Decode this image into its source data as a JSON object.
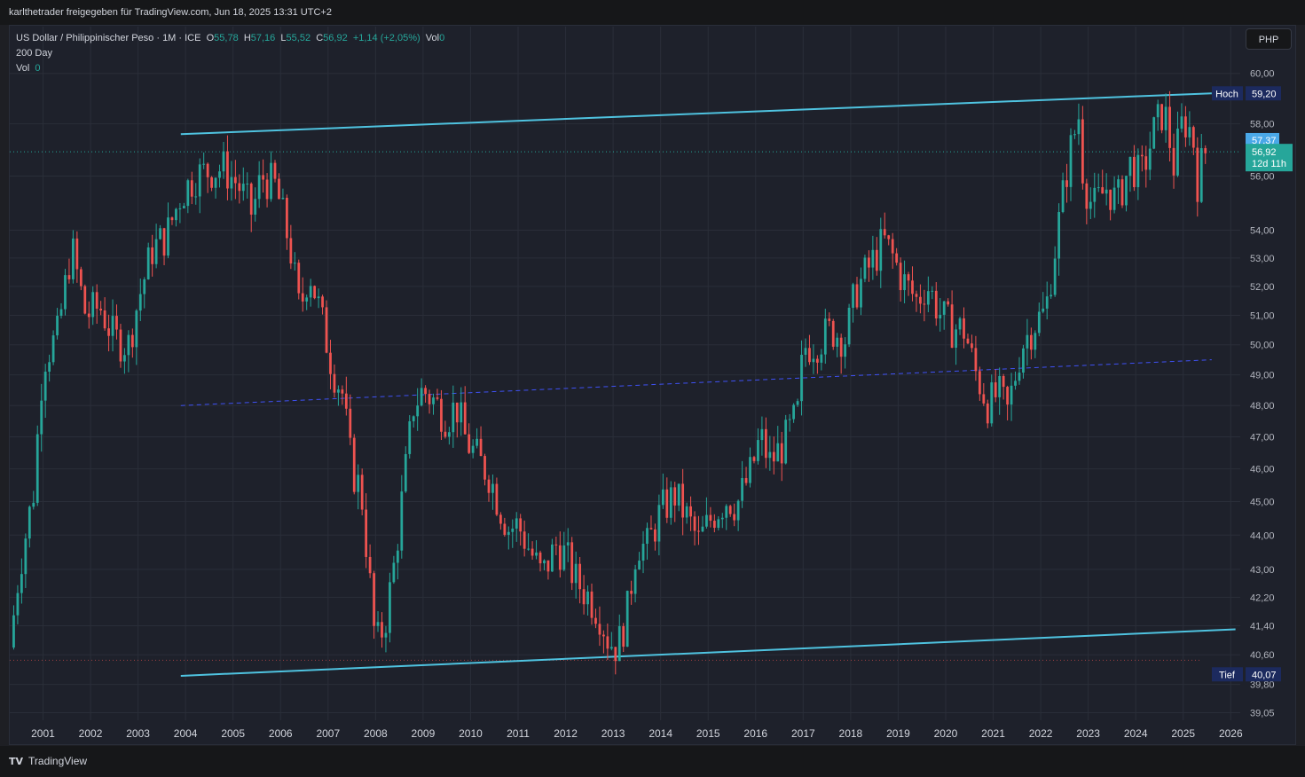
{
  "header": {
    "attribution": "karlthetrader freigegeben für TradingView.com, Jun 18, 2025 13:31 UTC+2"
  },
  "legend": {
    "symbol": "US Dollar / Philippinischer Peso · 1M · ICE",
    "o_label": "O",
    "o_value": "55,78",
    "h_label": "H",
    "h_value": "57,16",
    "l_label": "L",
    "l_value": "55,52",
    "c_label": "C",
    "c_value": "56,92",
    "change": "+1,14 (+2,05%)",
    "vol_label": "Vol",
    "vol_value": "0",
    "ma_label": "200 Day",
    "vol2_label": "Vol",
    "vol2_value": "0"
  },
  "currency_button": "PHP",
  "footer": {
    "brand": "TradingView"
  },
  "colors": {
    "up": "#26a69a",
    "down": "#ef5350",
    "channel": "#4fc3e0",
    "midline": "#3f51f5",
    "background": "#1e212b"
  },
  "chart_data": {
    "type": "candlestick",
    "scale": "log",
    "ylim": [
      38.9,
      61.0
    ],
    "xlim": [
      2000.3,
      2026.2
    ],
    "y_ticks": [
      "60,00",
      "58,00",
      "56,00",
      "54,00",
      "53,00",
      "52,00",
      "51,00",
      "50,00",
      "49,00",
      "48,00",
      "47,00",
      "46,00",
      "45,00",
      "44,00",
      "43,00",
      "42,20",
      "41,40",
      "40,60",
      "39,80",
      "39,05"
    ],
    "y_tick_values": [
      60,
      58,
      56,
      54,
      53,
      52,
      51,
      50,
      49,
      48,
      47,
      46,
      45,
      44,
      43,
      42.2,
      41.4,
      40.6,
      39.8,
      39.05
    ],
    "x_ticks": [
      "2001",
      "2002",
      "2003",
      "2004",
      "2005",
      "2006",
      "2007",
      "2008",
      "2009",
      "2010",
      "2011",
      "2012",
      "2013",
      "2014",
      "2015",
      "2016",
      "2017",
      "2018",
      "2019",
      "2020",
      "2021",
      "2022",
      "2023",
      "2024",
      "2025",
      "2026"
    ],
    "x_tick_values": [
      2001,
      2002,
      2003,
      2004,
      2005,
      2006,
      2007,
      2008,
      2009,
      2010,
      2011,
      2012,
      2013,
      2014,
      2015,
      2016,
      2017,
      2018,
      2019,
      2020,
      2021,
      2022,
      2023,
      2024,
      2025,
      2026
    ],
    "price_path": [
      [
        2000.3,
        40.8
      ],
      [
        2000.5,
        43.0
      ],
      [
        2000.8,
        45.3
      ],
      [
        2001.0,
        49.5
      ],
      [
        2001.3,
        50.3
      ],
      [
        2001.6,
        53.4
      ],
      [
        2001.9,
        51.0
      ],
      [
        2002.2,
        51.3
      ],
      [
        2002.5,
        50.2
      ],
      [
        2002.8,
        50.0
      ],
      [
        2003.0,
        51.5
      ],
      [
        2003.3,
        53.3
      ],
      [
        2003.6,
        53.8
      ],
      [
        2003.9,
        55.3
      ],
      [
        2004.2,
        56.0
      ],
      [
        2004.5,
        56.2
      ],
      [
        2004.8,
        56.3
      ],
      [
        2005.1,
        55.7
      ],
      [
        2005.4,
        54.6
      ],
      [
        2005.6,
        56.0
      ],
      [
        2005.9,
        55.6
      ],
      [
        2006.2,
        53.4
      ],
      [
        2006.4,
        51.1
      ],
      [
        2006.6,
        52.6
      ],
      [
        2006.8,
        51.3
      ],
      [
        2007.1,
        49.2
      ],
      [
        2007.3,
        48.4
      ],
      [
        2007.5,
        46.0
      ],
      [
        2007.7,
        45.3
      ],
      [
        2007.9,
        42.3
      ],
      [
        2008.0,
        40.8
      ],
      [
        2008.2,
        41.5
      ],
      [
        2008.4,
        43.2
      ],
      [
        2008.6,
        45.6
      ],
      [
        2008.8,
        48.0
      ],
      [
        2009.0,
        48.5
      ],
      [
        2009.2,
        48.2
      ],
      [
        2009.5,
        47.6
      ],
      [
        2009.7,
        48.0
      ],
      [
        2009.9,
        46.9
      ],
      [
        2010.2,
        46.2
      ],
      [
        2010.4,
        45.8
      ],
      [
        2010.6,
        44.9
      ],
      [
        2010.8,
        44.2
      ],
      [
        2011.0,
        44.3
      ],
      [
        2011.3,
        43.4
      ],
      [
        2011.5,
        42.8
      ],
      [
        2011.8,
        43.7
      ],
      [
        2012.0,
        43.4
      ],
      [
        2012.2,
        42.7
      ],
      [
        2012.5,
        42.2
      ],
      [
        2012.7,
        41.8
      ],
      [
        2012.9,
        41.0
      ],
      [
        2013.1,
        40.8
      ],
      [
        2013.3,
        41.8
      ],
      [
        2013.5,
        43.8
      ],
      [
        2013.7,
        43.6
      ],
      [
        2014.0,
        44.7
      ],
      [
        2014.3,
        45.2
      ],
      [
        2014.6,
        44.4
      ],
      [
        2014.8,
        43.8
      ],
      [
        2015.1,
        44.6
      ],
      [
        2015.4,
        45.1
      ],
      [
        2015.6,
        44.9
      ],
      [
        2015.9,
        45.9
      ],
      [
        2016.1,
        47.0
      ],
      [
        2016.3,
        46.2
      ],
      [
        2016.6,
        46.8
      ],
      [
        2016.9,
        47.8
      ],
      [
        2017.0,
        49.9
      ],
      [
        2017.3,
        50.1
      ],
      [
        2017.6,
        50.5
      ],
      [
        2017.9,
        50.2
      ],
      [
        2018.1,
        51.8
      ],
      [
        2018.4,
        52.7
      ],
      [
        2018.7,
        53.6
      ],
      [
        2018.9,
        53.0
      ],
      [
        2019.1,
        52.2
      ],
      [
        2019.4,
        51.5
      ],
      [
        2019.6,
        52.1
      ],
      [
        2019.9,
        51.0
      ],
      [
        2020.1,
        50.6
      ],
      [
        2020.4,
        50.5
      ],
      [
        2020.6,
        49.2
      ],
      [
        2020.9,
        48.0
      ],
      [
        2021.1,
        48.4
      ],
      [
        2021.3,
        47.8
      ],
      [
        2021.6,
        50.0
      ],
      [
        2021.9,
        50.8
      ],
      [
        2022.1,
        51.1
      ],
      [
        2022.4,
        54.5
      ],
      [
        2022.6,
        56.8
      ],
      [
        2022.8,
        58.3
      ],
      [
        2022.9,
        55.9
      ],
      [
        2023.1,
        54.8
      ],
      [
        2023.4,
        55.6
      ],
      [
        2023.6,
        55.0
      ],
      [
        2023.9,
        56.5
      ],
      [
        2024.1,
        55.9
      ],
      [
        2024.4,
        57.8
      ],
      [
        2024.6,
        58.6
      ],
      [
        2024.8,
        56.4
      ],
      [
        2025.0,
        58.2
      ],
      [
        2025.2,
        57.6
      ],
      [
        2025.3,
        55.8
      ],
      [
        2025.45,
        56.92
      ]
    ],
    "lines": [
      {
        "kind": "channel-top",
        "x": [
          2003.9,
          2025.6
        ],
        "y": [
          57.6,
          59.2
        ]
      },
      {
        "kind": "channel-bottom",
        "x": [
          2003.9,
          2026.1
        ],
        "y": [
          40.03,
          41.3
        ]
      },
      {
        "kind": "midline",
        "x": [
          2003.9,
          2025.6
        ],
        "y": [
          48.0,
          49.5
        ]
      }
    ],
    "price_tags": [
      {
        "label": "Hoch",
        "value": "59,20",
        "y": 59.2
      },
      {
        "label": "",
        "value": "57,37",
        "y": 57.37
      },
      {
        "label": "",
        "value": "56,92",
        "sub": "12d 11h",
        "y": 56.92
      },
      {
        "label": "Tief",
        "value": "40,07",
        "y": 40.07
      }
    ]
  }
}
